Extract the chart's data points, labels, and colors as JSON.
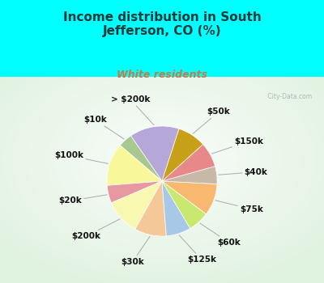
{
  "title": "Income distribution in South\nJefferson, CO (%)",
  "subtitle": "White residents",
  "title_color": "#1a3a3a",
  "subtitle_color": "#cc7744",
  "bg_color": "#00ffff",
  "chart_bg_top": "#e8f5ee",
  "chart_bg_bottom": "#f0f8f2",
  "watermark": " City-Data.com",
  "labels": [
    "> $200k",
    "$10k",
    "$100k",
    "$20k",
    "$200k",
    "$30k",
    "$125k",
    "$60k",
    "$75k",
    "$40k",
    "$150k",
    "$50k"
  ],
  "values": [
    14,
    4,
    12,
    5,
    10,
    9,
    7,
    6,
    9,
    5,
    7,
    8
  ],
  "colors": [
    "#b5a8d8",
    "#a8c890",
    "#f8f89a",
    "#e898a0",
    "#f8f8b0",
    "#f5c898",
    "#a8c8e8",
    "#c8e870",
    "#f8b870",
    "#c8b8a8",
    "#e88888",
    "#c8a018"
  ],
  "startangle": 72,
  "label_fontsize": 7.5,
  "title_fontsize": 11,
  "subtitle_fontsize": 9
}
